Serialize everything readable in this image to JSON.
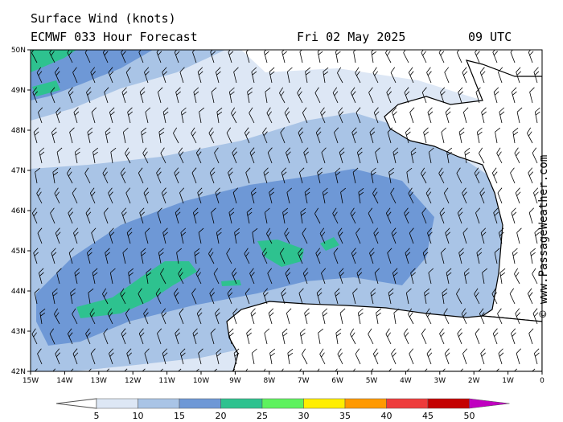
{
  "header": {
    "title": "Surface Wind (knots)",
    "model": "ECMWF 033 Hour Forecast",
    "date": "Fri 02 May 2025",
    "time": "09 UTC"
  },
  "attribution": "© www.PassageWeather.com",
  "axes": {
    "lat_labels": [
      "50N",
      "49N",
      "48N",
      "47N",
      "46N",
      "45N",
      "44N",
      "43N",
      "42N"
    ],
    "lon_labels": [
      "15W",
      "14W",
      "13W",
      "12W",
      "11W",
      "10W",
      "9W",
      "8W",
      "7W",
      "6W",
      "5W",
      "4W",
      "3W",
      "2W",
      "1W",
      "0"
    ]
  },
  "colorbar": {
    "labels": [
      "5",
      "10",
      "15",
      "20",
      "25",
      "30",
      "35",
      "40",
      "45",
      "50"
    ],
    "colors": [
      "#dde7f5",
      "#a9c4e6",
      "#6e98d6",
      "#2ec28f",
      "#5ef25e",
      "#ffee00",
      "#ff9900",
      "#ee3b3b",
      "#c40000",
      "#c000c0"
    ]
  },
  "palette": {
    "land": "#ffffff",
    "calm": "#ffffff",
    "c5": "#dde7f5",
    "c10": "#a9c4e6",
    "c15": "#6e98d6",
    "c20": "#2ec28f"
  }
}
